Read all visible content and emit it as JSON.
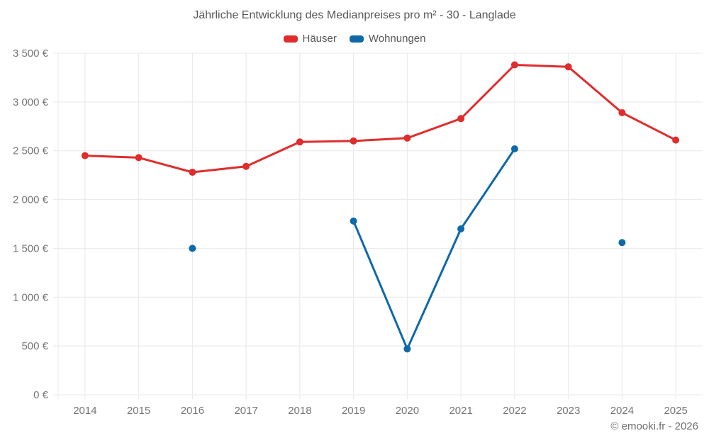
{
  "title": "Jährliche Entwicklung des Medianpreises pro m² - 30 - Langlade",
  "footer": "© emooki.fr - 2026",
  "colors": {
    "hauser_red": "#e02c2d",
    "wohnungen_blue": "#0e69a8",
    "gridline": "#e8e8e8",
    "tick_label": "#757575",
    "title_text": "#575757"
  },
  "chart_data": {
    "type": "line",
    "title": "Jährliche Entwicklung des Medianpreises pro m² - 30 - Langlade",
    "categories": [
      "2014",
      "2015",
      "2016",
      "2017",
      "2018",
      "2019",
      "2020",
      "2021",
      "2022",
      "2023",
      "2024",
      "2025"
    ],
    "series": [
      {
        "id": "hauser",
        "name": "Häuser",
        "color": "#e02c2d",
        "values": [
          2450,
          2430,
          2280,
          2340,
          2590,
          2600,
          2630,
          2830,
          3380,
          3360,
          2890,
          2610
        ]
      },
      {
        "id": "wohnungen",
        "name": "Wohnungen",
        "color": "#0e69a8",
        "values": [
          null,
          null,
          1500,
          null,
          null,
          1780,
          470,
          1700,
          2520,
          null,
          1560,
          null
        ]
      }
    ],
    "xlabel": "",
    "ylabel": "",
    "ylim": [
      0,
      3500
    ],
    "ytick_step": 500,
    "ytick_labels": [
      "0 €",
      "500 €",
      "1 000 €",
      "1 500 €",
      "2 000 €",
      "2 500 €",
      "3 000 €",
      "3 500 €"
    ],
    "grid": true,
    "legend_position": "top-center"
  }
}
